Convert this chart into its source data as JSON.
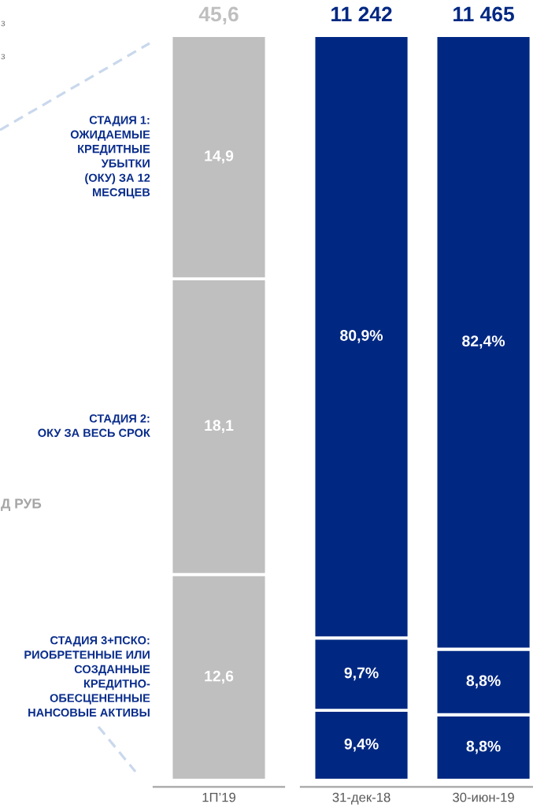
{
  "chart_data": [
    {
      "type": "bar",
      "stacked": true,
      "tick_labels": "x",
      "categories": [
        "1П’19"
      ],
      "series": [
        {
          "name": "СТАДИЯ 3+ПСКО:\nРИОБРЕТЕННЫЕ ИЛИ\nСОЗДАННЫЕ\nКРЕДИТНО-\nОБЕСЦЕНЕННЫЕ\nНАНСОВЫЕ АКТИВЫ",
          "color": "#bfbfbf",
          "values": [
            12.6
          ],
          "value_labels": [
            "12,6"
          ]
        },
        {
          "name": "СТАДИЯ 2:\nОКУ ЗА ВЕСЬ СРОК",
          "color": "#bfbfbf",
          "values": [
            18.1
          ],
          "value_labels": [
            "18,1"
          ]
        },
        {
          "name": "СТАДИЯ 1:\nОЖИДАЕМЫЕ\nКРЕДИТНЫЕ\nУБЫТКИ\n(ОКУ) ЗА 12\nМЕСЯЦЕВ",
          "color": "#bfbfbf",
          "values": [
            14.9
          ],
          "value_labels": [
            "14,9"
          ]
        }
      ],
      "totals": [
        "45,6"
      ],
      "annotations": [
        "з",
        "з",
        "Д РУБ"
      ]
    },
    {
      "type": "bar",
      "stacked": true,
      "tick_labels": "x",
      "categories": [
        "31-дек-18",
        "30-июн-19"
      ],
      "series": [
        {
          "color": "#002882",
          "values": [
            9.4,
            8.8
          ],
          "value_labels": [
            "9,4%",
            "8,8%"
          ]
        },
        {
          "color": "#002882",
          "values": [
            9.7,
            8.8
          ],
          "value_labels": [
            "9,7%",
            "8,8%"
          ]
        },
        {
          "color": "#002882",
          "values": [
            80.9,
            82.4
          ],
          "value_labels": [
            "80,9%",
            "82,4%"
          ]
        }
      ],
      "annotations": [
        {
          "text": "11 242",
          "x": "31-дек-18",
          "y": 100
        },
        {
          "text": "11 465",
          "x": "30-июн-19",
          "y": 100
        }
      ]
    }
  ]
}
